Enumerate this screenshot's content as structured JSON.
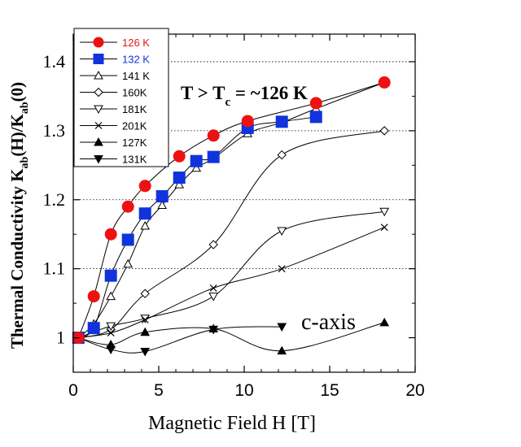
{
  "chart_data": {
    "type": "line",
    "xlabel": "Magnetic Field H [T]",
    "ylabel": {
      "text1": "Thermal Conductivity K",
      "sub1": "ab",
      "text2": "(H)/K",
      "sub2": "ab",
      "text3": "(0)"
    },
    "xlim": [
      0,
      20
    ],
    "ylim": [
      0.95,
      1.44
    ],
    "xticks": [
      "0",
      "5",
      "10",
      "15",
      "20"
    ],
    "yticks": [
      {
        "value": 1.0,
        "label": "1"
      },
      {
        "value": 1.1,
        "label": "1.1"
      },
      {
        "value": 1.2,
        "label": "1.2"
      },
      {
        "value": 1.3,
        "label": "1.3"
      },
      {
        "value": 1.4,
        "label": "1.4"
      }
    ],
    "grid": "horizontal dotted",
    "legend_position": "top-left",
    "annotations": {
      "tc_main": "T > T",
      "tc_sub": "c",
      "tc_rest": " = ~126 K",
      "caxis": "c-axis"
    },
    "series": [
      {
        "name": "126 K",
        "marker": "circle-filled",
        "color": "#ee1111",
        "label_color": "#ee1111",
        "size": 13,
        "line": true,
        "x": [
          0.3,
          1.2,
          2.2,
          3.2,
          4.2,
          6.2,
          8.2,
          10.2,
          14.2,
          18.2
        ],
        "y": [
          1.0,
          1.06,
          1.15,
          1.19,
          1.22,
          1.263,
          1.293,
          1.314,
          1.34,
          1.37
        ]
      },
      {
        "name": "132 K",
        "marker": "square-filled",
        "color": "#1133dd",
        "label_color": "#1133dd",
        "size": 13,
        "line": true,
        "x": [
          0.3,
          1.2,
          2.2,
          3.2,
          4.2,
          5.2,
          6.2,
          7.2,
          8.2,
          10.2,
          12.2,
          14.2
        ],
        "y": [
          1.0,
          1.014,
          1.09,
          1.142,
          1.18,
          1.205,
          1.232,
          1.256,
          1.262,
          1.304,
          1.313,
          1.32
        ]
      },
      {
        "name": "141 K",
        "marker": "triangle-open",
        "color": "#000000",
        "label_color": "#000000",
        "size": 8,
        "line": true,
        "x": [
          0.3,
          1.2,
          2.2,
          3.2,
          4.2,
          5.2,
          6.2,
          7.2,
          8.2,
          10.2,
          12.2,
          14.2,
          18.2
        ],
        "y": [
          1.0,
          1.02,
          1.06,
          1.107,
          1.162,
          1.192,
          1.222,
          1.246,
          1.26,
          1.296,
          1.312,
          1.332,
          1.37
        ]
      },
      {
        "name": "160K",
        "marker": "diamond-open",
        "color": "#000000",
        "label_color": "#000000",
        "size": 8,
        "line": true,
        "x": [
          0.3,
          2.2,
          4.2,
          8.2,
          12.2,
          18.2
        ],
        "y": [
          1.0,
          1.012,
          1.064,
          1.135,
          1.265,
          1.3
        ]
      },
      {
        "name": "181K",
        "marker": "triangle-down-open",
        "color": "#000000",
        "label_color": "#000000",
        "size": 8,
        "line": true,
        "x": [
          0.3,
          2.2,
          4.2,
          8.2,
          12.2,
          18.2
        ],
        "y": [
          1.0,
          1.017,
          1.028,
          1.06,
          1.155,
          1.183
        ]
      },
      {
        "name": "201K",
        "marker": "x",
        "color": "#000000",
        "label_color": "#000000",
        "size": 8,
        "line": true,
        "x": [
          0.3,
          2.2,
          4.2,
          8.2,
          12.2,
          18.2
        ],
        "y": [
          1.0,
          1.007,
          1.026,
          1.072,
          1.1,
          1.16
        ]
      },
      {
        "name": "127K",
        "marker": "triangle-filled",
        "color": "#000000",
        "label_color": "#000000",
        "size": 8,
        "line": true,
        "x": [
          0.3,
          2.2,
          4.2,
          8.2,
          12.2,
          18.2
        ],
        "y": [
          1.0,
          0.99,
          1.008,
          1.013,
          0.981,
          1.022
        ]
      },
      {
        "name": "131K",
        "marker": "triangle-down-filled",
        "color": "#000000",
        "label_color": "#000000",
        "size": 8,
        "line": true,
        "x": [
          0.3,
          2.2,
          4.2,
          8.2,
          12.2
        ],
        "y": [
          1.0,
          0.983,
          0.98,
          1.012,
          1.016
        ]
      }
    ]
  }
}
